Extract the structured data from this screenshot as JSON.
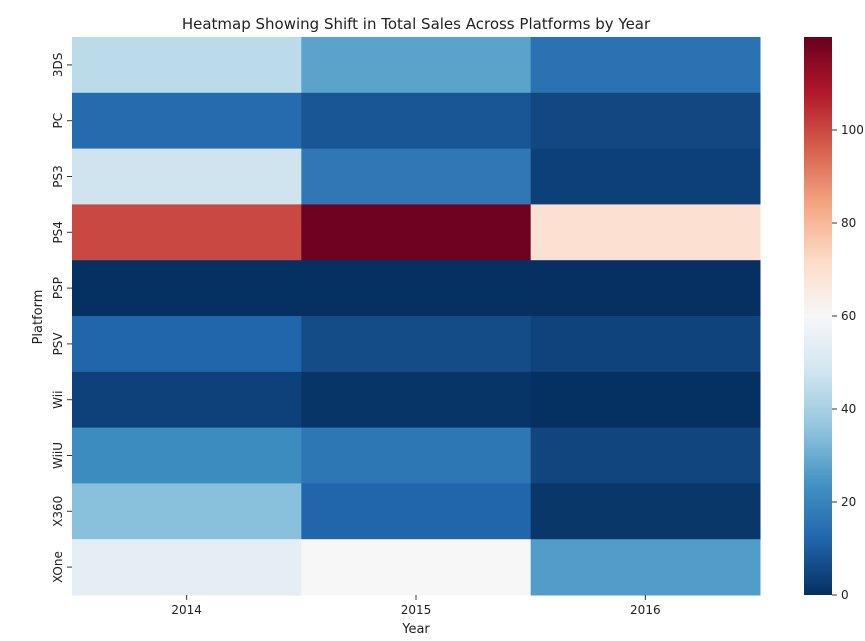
{
  "chart_data": {
    "type": "heatmap",
    "title": "Heatmap Showing Shift in Total Sales Across Platforms by Year",
    "xlabel": "Year",
    "ylabel": "Platform",
    "x": [
      "2014",
      "2015",
      "2016"
    ],
    "y": [
      "3DS",
      "PC",
      "PS3",
      "PS4",
      "PSP",
      "PSV",
      "Wii",
      "WiiU",
      "X360",
      "XOne"
    ],
    "values": [
      [
        43.8,
        27.8,
        15.1
      ],
      [
        13.3,
        8.5,
        5.3
      ],
      [
        47.8,
        16.8,
        3.6
      ],
      [
        100.0,
        118.9,
        69.3
      ],
      [
        0.2,
        0.1,
        0.0
      ],
      [
        11.9,
        6.3,
        4.3
      ],
      [
        3.8,
        1.1,
        0.2
      ],
      [
        22.0,
        16.4,
        4.6
      ],
      [
        34.7,
        11.9,
        1.5
      ],
      [
        54.1,
        60.1,
        26.2
      ]
    ],
    "colorbar": {
      "colormap": "RdBu_r",
      "min": 0,
      "max": 120,
      "ticks": [
        0,
        20,
        40,
        60,
        80,
        100
      ]
    }
  }
}
